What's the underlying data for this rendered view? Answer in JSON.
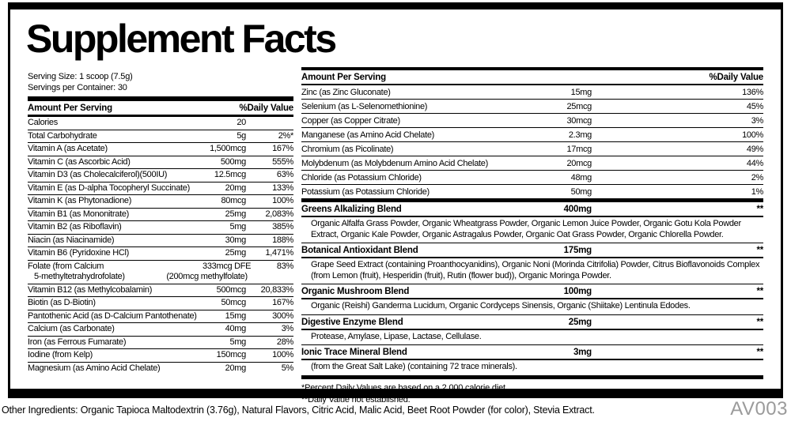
{
  "title": "Supplement Facts",
  "serving": {
    "size": "Serving Size: 1 scoop (7.5g)",
    "per_container": "Servings per Container: 30"
  },
  "table_headers": {
    "amount": "Amount Per Serving",
    "daily_value": "%Daily Value"
  },
  "left_rows": [
    {
      "name": "Calories",
      "amount": "20",
      "dv": ""
    },
    {
      "name": "Total Carbohydrate",
      "amount": "5g",
      "dv": "2%*"
    },
    {
      "name": "Vitamin A (as Acetate)",
      "amount": "1,500mcg",
      "dv": "167%"
    },
    {
      "name": "Vitamin C (as Ascorbic Acid)",
      "amount": "500mg",
      "dv": "555%"
    },
    {
      "name": "Vitamin D3 (as Cholecalciferol)(500IU)",
      "amount": "12.5mcg",
      "dv": "63%"
    },
    {
      "name": "Vitamin E (as D-alpha Tocopheryl Succinate)",
      "amount": "20mg",
      "dv": "133%"
    },
    {
      "name": "Vitamin K (as Phytonadione)",
      "amount": "80mcg",
      "dv": "100%"
    },
    {
      "name": "Vitamin B1 (as Mononitrate)",
      "amount": "25mg",
      "dv": "2,083%"
    },
    {
      "name": "Vitamin B2 (as Riboflavin)",
      "amount": "5mg",
      "dv": "385%"
    },
    {
      "name": "Niacin (as Niacinamide)",
      "amount": "30mg",
      "dv": "188%"
    },
    {
      "name": "Vitamin B6 (Pyridoxine HCl)",
      "amount": "25mg",
      "dv": "1,471%"
    },
    {
      "name": "Folate (from Calcium",
      "name2": "5-methyltetrahydrofolate)",
      "amount": "333mcg DFE",
      "amount2": "(200mcg methylfolate)",
      "dv": "83%"
    },
    {
      "name": "Vitamin B12 (as Methylcobalamin)",
      "amount": "500mcg",
      "dv": "20,833%"
    },
    {
      "name": "Biotin (as D-Biotin)",
      "amount": "50mcg",
      "dv": "167%"
    },
    {
      "name": "Pantothenic Acid (as D-Calcium Pantothenate)",
      "amount": "15mg",
      "dv": "300%"
    },
    {
      "name": "Calcium (as Carbonate)",
      "amount": "40mg",
      "dv": "3%"
    },
    {
      "name": "Iron (as Ferrous Fumarate)",
      "amount": "5mg",
      "dv": "28%"
    },
    {
      "name": "Iodine (from Kelp)",
      "amount": "150mcg",
      "dv": "100%"
    },
    {
      "name": "Magnesium (as Amino Acid Chelate)",
      "amount": "20mg",
      "dv": "5%"
    }
  ],
  "right_rows": [
    {
      "name": "Zinc (as Zinc Gluconate)",
      "amount": "15mg",
      "dv": "136%"
    },
    {
      "name": "Selenium (as L-Selenomethionine)",
      "amount": "25mcg",
      "dv": "45%"
    },
    {
      "name": "Copper (as Copper Citrate)",
      "amount": "30mcg",
      "dv": "3%"
    },
    {
      "name": "Manganese (as Amino Acid Chelate)",
      "amount": "2.3mg",
      "dv": "100%"
    },
    {
      "name": "Chromium (as Picolinate)",
      "amount": "17mcg",
      "dv": "49%"
    },
    {
      "name": "Molybdenum (as Molybdenum Amino Acid Chelate)",
      "amount": "20mcg",
      "dv": "44%"
    },
    {
      "name": "Chloride (as Potassium Chloride)",
      "amount": "48mg",
      "dv": "2%"
    },
    {
      "name": "Potassium (as Potassium Chloride)",
      "amount": "50mg",
      "dv": "1%"
    }
  ],
  "blends": [
    {
      "name": "Greens Alkalizing Blend",
      "amount": "400mg",
      "dv": "**",
      "desc": "Organic Alfalfa Grass Powder, Organic Wheatgrass Powder, Organic Lemon Juice Powder, Organic Gotu Kola Powder Extract, Organic Kale Powder, Organic Astragalus Powder, Organic Oat Grass Powder, Organic Chlorella Powder."
    },
    {
      "name": "Botanical Antioxidant Blend",
      "amount": "175mg",
      "dv": "**",
      "desc": "Grape Seed Extract (containing Proanthocyanidins), Organic Noni (Morinda Citrifolia) Powder, Citrus Bioflavonoids Complex (from Lemon (fruit), Hesperidin (fruit), Rutin (flower bud)), Organic Moringa Powder."
    },
    {
      "name": "Organic Mushroom Blend",
      "amount": "100mg",
      "dv": "**",
      "desc": "Organic (Reishi) Ganderma Lucidum, Organic Cordyceps Sinensis, Organic (Shiitake) Lentinula Edodes."
    },
    {
      "name": "Digestive Enzyme Blend",
      "amount": "25mg",
      "dv": "**",
      "desc": "Protease, Amylase, Lipase, Lactase, Cellulase."
    },
    {
      "name": "Ionic Trace Mineral Blend",
      "amount": "3mg",
      "dv": "**",
      "desc": "(from the Great Salt Lake) (containing 72 trace minerals)."
    }
  ],
  "footnotes": [
    "*Percent Daily Values are based on a 2,000 calorie diet.",
    "**Daily Value not established."
  ],
  "other_ingredients": "Other Ingredients: Organic Tapioca Maltodextrin (3.76g), Natural Flavors, Citric Acid, Malic Acid, Beet Root Powder (for color), Stevia Extract.",
  "code": "AV003",
  "colors": {
    "text": "#000000",
    "rule": "#000000",
    "code_gray": "#9b9b9b"
  }
}
